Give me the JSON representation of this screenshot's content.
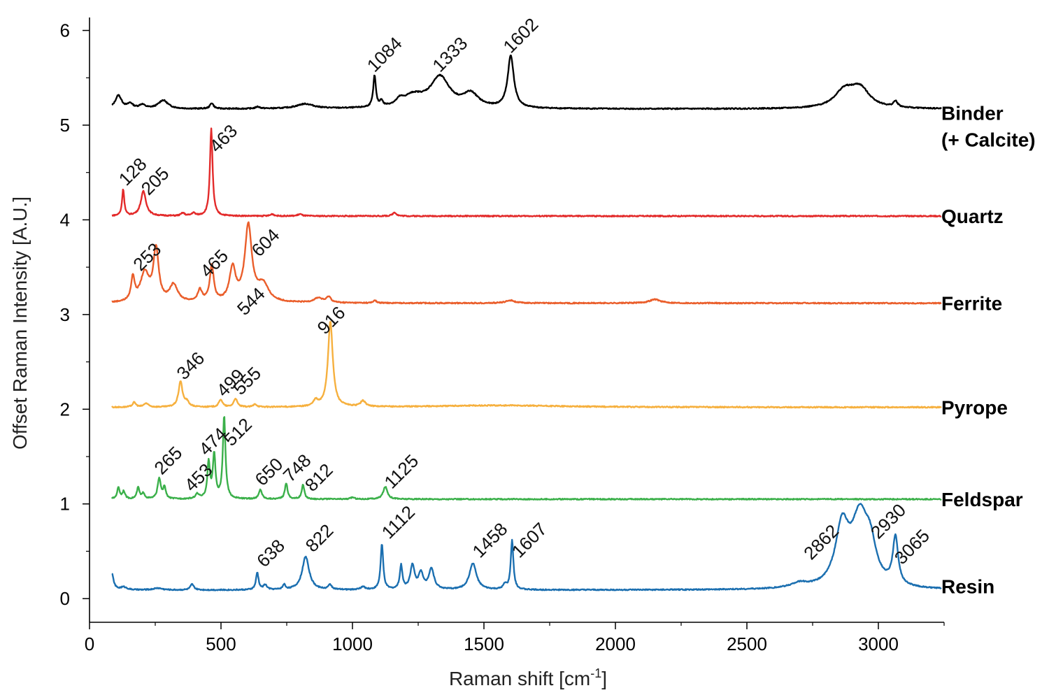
{
  "chart_data": {
    "type": "line",
    "xlabel": "Raman shift [cm",
    "xlabel_sup": "-1",
    "xlabel_end": "]",
    "ylabel": "Offset Raman Intensity [A.U.]",
    "xlim": [
      0,
      3250
    ],
    "ylim": [
      -0.25,
      6.1
    ],
    "x_ticks": [
      0,
      500,
      1000,
      1500,
      2000,
      2500,
      3000
    ],
    "y_ticks": [
      0,
      1,
      2,
      3,
      4,
      5,
      6
    ],
    "grid": false,
    "series": [
      {
        "name": "Binder",
        "name_line2": "(+ Calcite)",
        "color": "#000000",
        "baseline": 5.17,
        "label_y": 5.13,
        "peaks": [
          [
            110,
            0.14,
            15
          ],
          [
            155,
            0.05,
            12
          ],
          [
            200,
            0.04,
            14
          ],
          [
            280,
            0.09,
            22
          ],
          [
            465,
            0.06,
            8
          ],
          [
            640,
            0.02,
            10
          ],
          [
            820,
            0.05,
            40
          ],
          [
            1084,
            0.33,
            6
          ],
          [
            1110,
            0.06,
            6
          ],
          [
            1180,
            0.05,
            15
          ],
          [
            1230,
            0.12,
            50
          ],
          [
            1333,
            0.32,
            45
          ],
          [
            1450,
            0.14,
            35
          ],
          [
            1602,
            0.55,
            14
          ],
          [
            2870,
            0.17,
            45
          ],
          [
            2930,
            0.2,
            45
          ],
          [
            3065,
            0.06,
            10
          ]
        ],
        "annotations": [
          {
            "text": "1084",
            "x": 1084,
            "y": 5.55
          },
          {
            "text": "1333",
            "x": 1333,
            "y": 5.55
          },
          {
            "text": "1602",
            "x": 1602,
            "y": 5.75
          }
        ]
      },
      {
        "name": "Quartz",
        "color": "#e32a2a",
        "baseline": 4.04,
        "label_y": 4.04,
        "peaks": [
          [
            128,
            0.28,
            5
          ],
          [
            205,
            0.26,
            12
          ],
          [
            355,
            0.03,
            8
          ],
          [
            395,
            0.03,
            8
          ],
          [
            463,
            0.92,
            6
          ],
          [
            695,
            0.02,
            8
          ],
          [
            800,
            0.02,
            10
          ],
          [
            1160,
            0.04,
            8
          ]
        ],
        "annotations": [
          {
            "text": "128",
            "x": 140,
            "y": 4.35
          },
          {
            "text": "205",
            "x": 225,
            "y": 4.25
          },
          {
            "text": "463",
            "x": 485,
            "y": 4.7
          }
        ]
      },
      {
        "name": "Ferrite",
        "color": "#ea5e2b",
        "baseline": 3.12,
        "label_y": 3.12,
        "peaks": [
          [
            165,
            0.25,
            8
          ],
          [
            210,
            0.3,
            20
          ],
          [
            253,
            0.55,
            12
          ],
          [
            320,
            0.18,
            18
          ],
          [
            420,
            0.12,
            10
          ],
          [
            465,
            0.38,
            9
          ],
          [
            544,
            0.35,
            14
          ],
          [
            604,
            0.8,
            16
          ],
          [
            660,
            0.18,
            25
          ],
          [
            870,
            0.05,
            20
          ],
          [
            910,
            0.06,
            10
          ],
          [
            1085,
            0.03,
            6
          ],
          [
            1600,
            0.03,
            20
          ],
          [
            2150,
            0.04,
            25
          ]
        ],
        "annotations": [
          {
            "text": "253",
            "x": 195,
            "y": 3.45
          },
          {
            "text": "465",
            "x": 450,
            "y": 3.38
          },
          {
            "text": "604",
            "x": 645,
            "y": 3.6
          },
          {
            "text": "544",
            "x": 590,
            "y": 2.98
          }
        ]
      },
      {
        "name": "Pyrope",
        "color": "#f6b03e",
        "baseline": 2.02,
        "label_y": 2.02,
        "peaks": [
          [
            170,
            0.05,
            8
          ],
          [
            215,
            0.04,
            10
          ],
          [
            346,
            0.27,
            9
          ],
          [
            370,
            0.05,
            10
          ],
          [
            499,
            0.08,
            8
          ],
          [
            555,
            0.09,
            8
          ],
          [
            630,
            0.03,
            8
          ],
          [
            860,
            0.06,
            10
          ],
          [
            916,
            0.9,
            11
          ],
          [
            1040,
            0.06,
            12
          ],
          [
            1550,
            0.02,
            300
          ]
        ],
        "annotations": [
          {
            "text": "346",
            "x": 360,
            "y": 2.3
          },
          {
            "text": "499",
            "x": 512,
            "y": 2.12
          },
          {
            "text": "555",
            "x": 575,
            "y": 2.14
          },
          {
            "text": "916",
            "x": 895,
            "y": 2.78
          }
        ]
      },
      {
        "name": "Feldspar",
        "color": "#3bb04a",
        "baseline": 1.05,
        "label_y": 1.05,
        "peaks": [
          [
            110,
            0.12,
            6
          ],
          [
            130,
            0.08,
            6
          ],
          [
            185,
            0.12,
            6
          ],
          [
            205,
            0.06,
            6
          ],
          [
            265,
            0.22,
            7
          ],
          [
            285,
            0.12,
            6
          ],
          [
            410,
            0.05,
            8
          ],
          [
            453,
            0.38,
            6
          ],
          [
            474,
            0.46,
            6
          ],
          [
            512,
            0.87,
            6
          ],
          [
            650,
            0.1,
            7
          ],
          [
            748,
            0.17,
            6
          ],
          [
            812,
            0.15,
            6
          ],
          [
            1000,
            0.02,
            8
          ],
          [
            1125,
            0.13,
            10
          ]
        ],
        "annotations": [
          {
            "text": "265",
            "x": 275,
            "y": 1.3
          },
          {
            "text": "474",
            "x": 445,
            "y": 1.5
          },
          {
            "text": "453",
            "x": 390,
            "y": 1.12
          },
          {
            "text": "512",
            "x": 540,
            "y": 1.6
          },
          {
            "text": "650",
            "x": 658,
            "y": 1.18
          },
          {
            "text": "748",
            "x": 765,
            "y": 1.22
          },
          {
            "text": "812",
            "x": 848,
            "y": 1.12
          },
          {
            "text": "1125",
            "x": 1150,
            "y": 1.15
          }
        ]
      },
      {
        "name": "Resin",
        "color": "#1b6fb0",
        "baseline": 0.09,
        "label_y": 0.13,
        "peaks": [
          [
            85,
            0.17,
            8
          ],
          [
            130,
            0.03,
            15
          ],
          [
            260,
            0.02,
            20
          ],
          [
            390,
            0.06,
            8
          ],
          [
            638,
            0.18,
            6
          ],
          [
            668,
            0.05,
            8
          ],
          [
            740,
            0.05,
            6
          ],
          [
            822,
            0.35,
            16
          ],
          [
            915,
            0.05,
            8
          ],
          [
            1040,
            0.03,
            10
          ],
          [
            1112,
            0.48,
            6
          ],
          [
            1185,
            0.25,
            6
          ],
          [
            1228,
            0.25,
            10
          ],
          [
            1260,
            0.17,
            10
          ],
          [
            1300,
            0.22,
            12
          ],
          [
            1458,
            0.28,
            16
          ],
          [
            1580,
            0.05,
            8
          ],
          [
            1607,
            0.52,
            6
          ],
          [
            2700,
            0.05,
            40
          ],
          [
            2862,
            0.6,
            30
          ],
          [
            2930,
            0.72,
            40
          ],
          [
            2970,
            0.3,
            25
          ],
          [
            3065,
            0.5,
            12
          ]
        ],
        "annotations": [
          {
            "text": "638",
            "x": 665,
            "y": 0.32
          },
          {
            "text": "822",
            "x": 850,
            "y": 0.48
          },
          {
            "text": "1112",
            "x": 1140,
            "y": 0.62
          },
          {
            "text": "1458",
            "x": 1485,
            "y": 0.42
          },
          {
            "text": "1607",
            "x": 1635,
            "y": 0.42
          },
          {
            "text": "2862",
            "x": 2745,
            "y": 0.4
          },
          {
            "text": "2930",
            "x": 3000,
            "y": 0.62
          },
          {
            "text": "3065",
            "x": 3090,
            "y": 0.35
          }
        ]
      }
    ]
  }
}
